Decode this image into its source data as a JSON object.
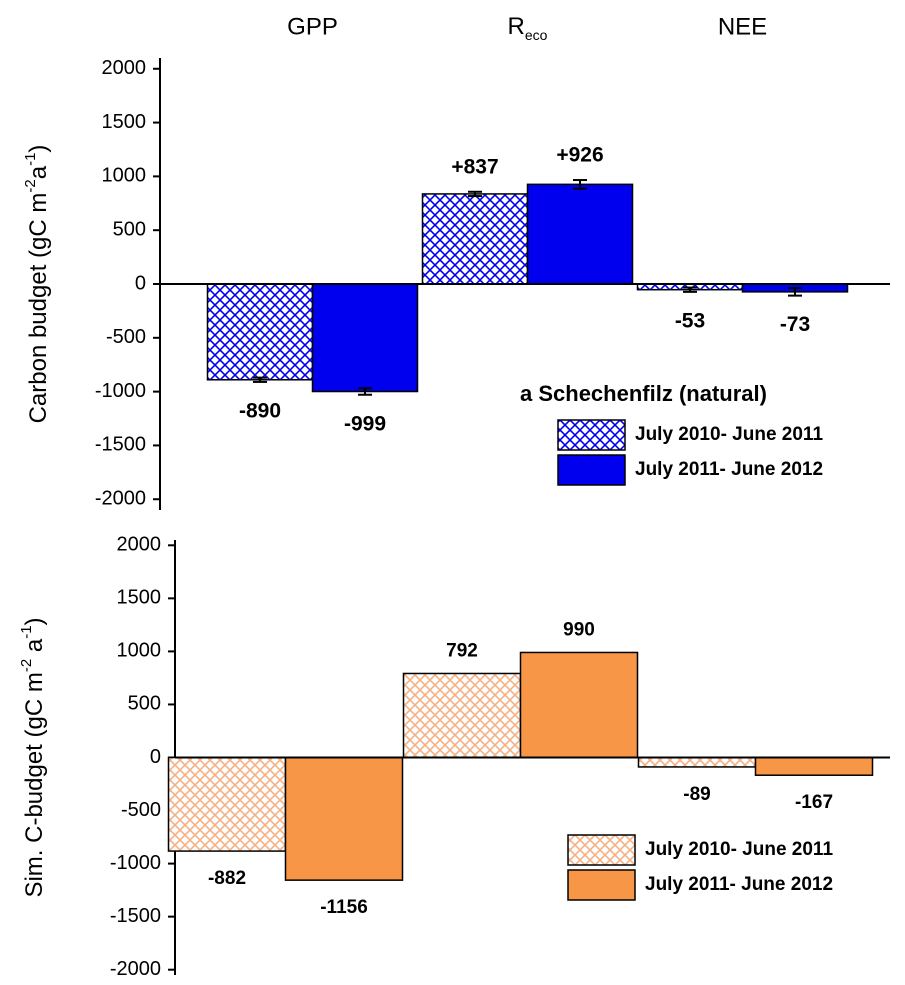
{
  "chart_data": [
    {
      "type": "bar",
      "categories": [
        "GPP",
        [
          "R",
          "eco"
        ],
        "NEE"
      ],
      "ylabel": [
        "Carbon budget (gC m",
        "-2",
        "a",
        "-1",
        ")"
      ],
      "ylim": [
        -2100,
        2100
      ],
      "yticks": [
        -2000,
        -1500,
        -1000,
        -500,
        0,
        500,
        1000,
        1500,
        2000
      ],
      "legend_title": "a  Schechenfilz (natural)",
      "legend": "lower right",
      "series": [
        {
          "name": "July 2010- June 2011",
          "color": "#0000ee",
          "pattern": "crosshatch",
          "values": [
            -890,
            837,
            -53
          ],
          "value_labels": [
            "-890",
            "+837",
            "-53"
          ],
          "errors": [
            20,
            20,
            20
          ]
        },
        {
          "name": "July 2011- June 2012",
          "color": "#0000ee",
          "values": [
            -999,
            926,
            -73
          ],
          "value_labels": [
            "-999",
            "+926",
            "-73"
          ],
          "errors": [
            30,
            40,
            35
          ]
        }
      ]
    },
    {
      "type": "bar",
      "categories": [
        null,
        null,
        null
      ],
      "ylabel": [
        "Sim. C-budget (gC m",
        "-2",
        " a",
        "-1",
        ")"
      ],
      "ylim": [
        -2050,
        2050
      ],
      "yticks": [
        -2000,
        -1500,
        -1000,
        -500,
        0,
        500,
        1000,
        1500,
        2000
      ],
      "legend": "lower right",
      "series": [
        {
          "name": "July 2010- June 2011",
          "color": "#f4b183",
          "pattern": "crosshatch",
          "values": [
            -882,
            792,
            -89
          ]
        },
        {
          "name": "July 2011- June 2012",
          "color": "#f79646",
          "values": [
            -1156,
            990,
            -167
          ]
        }
      ]
    }
  ]
}
